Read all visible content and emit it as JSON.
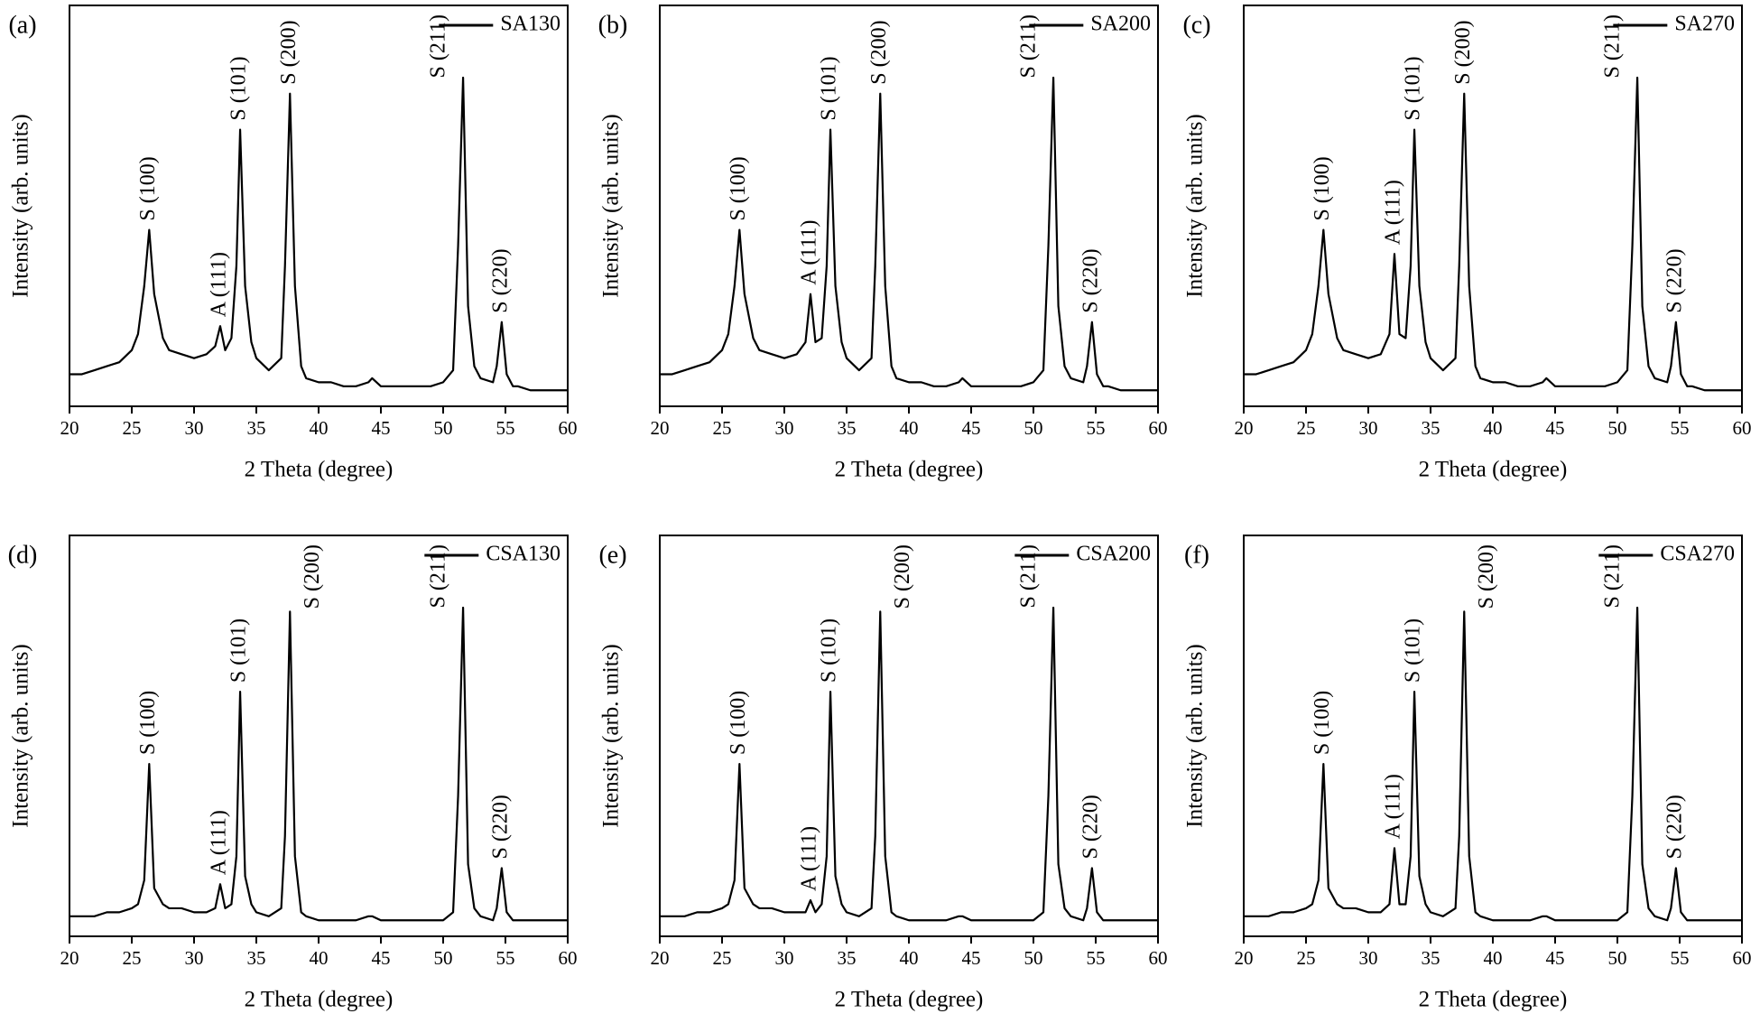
{
  "chart_data": [
    {
      "type": "line",
      "panel_label": "(a)",
      "xlabel": "2 Theta (degree)",
      "ylabel": "Intensity (arb. units)",
      "xlim": [
        20,
        60
      ],
      "xticks": [
        20,
        25,
        30,
        35,
        40,
        45,
        50,
        55,
        60
      ],
      "ylim": [
        0,
        100
      ],
      "legend": "upper right",
      "x": [
        20,
        21,
        22,
        23,
        24,
        25,
        25.5,
        26,
        26.4,
        26.8,
        27.5,
        28,
        29,
        30,
        31,
        31.7,
        32.1,
        32.5,
        33,
        33.4,
        33.7,
        34.1,
        34.6,
        35,
        36,
        37,
        37.3,
        37.7,
        38.1,
        38.6,
        39,
        40,
        41,
        42,
        43,
        44,
        44.3,
        45,
        46,
        47,
        48,
        49,
        50,
        50.8,
        51.2,
        51.6,
        52,
        52.5,
        53,
        54,
        54.3,
        54.7,
        55.1,
        55.6,
        56,
        57,
        58,
        59,
        60
      ],
      "series": [
        {
          "name": "SA130",
          "color": "#000000",
          "values": [
            8,
            8,
            9,
            10,
            11,
            14,
            18,
            30,
            44,
            28,
            17,
            14,
            13,
            12,
            13,
            15,
            20,
            14,
            17,
            35,
            69,
            30,
            16,
            12,
            9,
            12,
            35,
            78,
            30,
            10,
            7,
            6,
            6,
            5,
            5,
            6,
            7,
            5,
            5,
            5,
            5,
            5,
            6,
            9,
            40,
            82,
            25,
            10,
            7,
            6,
            10,
            21,
            8,
            5,
            5,
            4,
            4,
            4,
            4
          ]
        }
      ],
      "annotations": [
        {
          "text": "S (100)",
          "x": 26.4
        },
        {
          "text": "A (111)",
          "x": 32.1
        },
        {
          "text": "S (101)",
          "x": 33.7
        },
        {
          "text": "S (200)",
          "x": 37.7
        },
        {
          "text": "S (211)",
          "x": 51.6
        },
        {
          "text": "S (220)",
          "x": 54.7
        }
      ]
    },
    {
      "type": "line",
      "panel_label": "(b)",
      "xlabel": "2 Theta (degree)",
      "ylabel": "Intensity (arb. units)",
      "xlim": [
        20,
        60
      ],
      "xticks": [
        20,
        25,
        30,
        35,
        40,
        45,
        50,
        55,
        60
      ],
      "ylim": [
        0,
        100
      ],
      "legend": "upper right",
      "x": [
        20,
        21,
        22,
        23,
        24,
        25,
        25.5,
        26,
        26.4,
        26.8,
        27.5,
        28,
        29,
        30,
        31,
        31.7,
        32.1,
        32.5,
        33,
        33.4,
        33.7,
        34.1,
        34.6,
        35,
        36,
        37,
        37.3,
        37.7,
        38.1,
        38.6,
        39,
        40,
        41,
        42,
        43,
        44,
        44.3,
        45,
        46,
        47,
        48,
        49,
        50,
        50.8,
        51.2,
        51.6,
        52,
        52.5,
        53,
        54,
        54.3,
        54.7,
        55.1,
        55.6,
        56,
        57,
        58,
        59,
        60
      ],
      "series": [
        {
          "name": "SA200",
          "color": "#000000",
          "values": [
            8,
            8,
            9,
            10,
            11,
            14,
            18,
            30,
            44,
            28,
            17,
            14,
            13,
            12,
            13,
            16,
            28,
            16,
            17,
            35,
            69,
            30,
            16,
            12,
            9,
            12,
            35,
            78,
            30,
            10,
            7,
            6,
            6,
            5,
            5,
            6,
            7,
            5,
            5,
            5,
            5,
            5,
            6,
            9,
            40,
            82,
            25,
            10,
            7,
            6,
            10,
            21,
            8,
            5,
            5,
            4,
            4,
            4,
            4
          ]
        }
      ],
      "annotations": [
        {
          "text": "S (100)",
          "x": 26.4
        },
        {
          "text": "A (111)",
          "x": 32.1
        },
        {
          "text": "S (101)",
          "x": 33.7
        },
        {
          "text": "S (200)",
          "x": 37.7
        },
        {
          "text": "S (211)",
          "x": 51.6
        },
        {
          "text": "S (220)",
          "x": 54.7
        }
      ]
    },
    {
      "type": "line",
      "panel_label": "(c)",
      "xlabel": "2 Theta (degree)",
      "ylabel": "Intensity (arb. units)",
      "xlim": [
        20,
        60
      ],
      "xticks": [
        20,
        25,
        30,
        35,
        40,
        45,
        50,
        55,
        60
      ],
      "ylim": [
        0,
        100
      ],
      "legend": "upper right",
      "x": [
        20,
        21,
        22,
        23,
        24,
        25,
        25.5,
        26,
        26.4,
        26.8,
        27.5,
        28,
        29,
        30,
        31,
        31.7,
        32.1,
        32.5,
        33,
        33.4,
        33.7,
        34.1,
        34.6,
        35,
        36,
        37,
        37.3,
        37.7,
        38.1,
        38.6,
        39,
        40,
        41,
        42,
        43,
        44,
        44.3,
        45,
        46,
        47,
        48,
        49,
        50,
        50.8,
        51.2,
        51.6,
        52,
        52.5,
        53,
        54,
        54.3,
        54.7,
        55.1,
        55.6,
        56,
        57,
        58,
        59,
        60
      ],
      "series": [
        {
          "name": "SA270",
          "color": "#000000",
          "values": [
            8,
            8,
            9,
            10,
            11,
            14,
            18,
            30,
            44,
            28,
            17,
            14,
            13,
            12,
            13,
            18,
            38,
            18,
            17,
            35,
            69,
            30,
            16,
            12,
            9,
            12,
            35,
            78,
            30,
            10,
            7,
            6,
            6,
            5,
            5,
            6,
            7,
            5,
            5,
            5,
            5,
            5,
            6,
            9,
            40,
            82,
            25,
            10,
            7,
            6,
            10,
            21,
            8,
            5,
            5,
            4,
            4,
            4,
            4
          ]
        }
      ],
      "annotations": [
        {
          "text": "S (100)",
          "x": 26.4
        },
        {
          "text": "A (111)",
          "x": 32.1
        },
        {
          "text": "S (101)",
          "x": 33.7
        },
        {
          "text": "S (200)",
          "x": 37.7
        },
        {
          "text": "S (211)",
          "x": 51.6
        },
        {
          "text": "S (220)",
          "x": 54.7
        }
      ]
    },
    {
      "type": "line",
      "panel_label": "(d)",
      "xlabel": "2 Theta (degree)",
      "ylabel": "Intensity (arb. units)",
      "xlim": [
        20,
        60
      ],
      "xticks": [
        20,
        25,
        30,
        35,
        40,
        45,
        50,
        55,
        60
      ],
      "ylim": [
        0,
        100
      ],
      "legend": "upper right",
      "x": [
        20,
        21,
        22,
        23,
        24,
        25,
        25.5,
        26,
        26.4,
        26.8,
        27.5,
        28,
        29,
        30,
        31,
        31.7,
        32.1,
        32.5,
        33,
        33.4,
        33.7,
        34.1,
        34.6,
        35,
        36,
        37,
        37.3,
        37.7,
        38.1,
        38.6,
        39,
        40,
        41,
        42,
        43,
        44,
        44.3,
        45,
        46,
        47,
        48,
        49,
        50,
        50.8,
        51.2,
        51.6,
        52,
        52.5,
        53,
        54,
        54.3,
        54.7,
        55.1,
        55.6,
        56,
        57,
        58,
        59,
        60
      ],
      "series": [
        {
          "name": "CSA130",
          "color": "#000000",
          "values": [
            5,
            5,
            5,
            6,
            6,
            7,
            8,
            14,
            43,
            12,
            8,
            7,
            7,
            6,
            6,
            7,
            13,
            7,
            8,
            20,
            61,
            15,
            8,
            6,
            5,
            7,
            25,
            81,
            20,
            6,
            5,
            4,
            4,
            4,
            4,
            5,
            5,
            4,
            4,
            4,
            4,
            4,
            4,
            6,
            35,
            82,
            18,
            7,
            5,
            4,
            7,
            17,
            6,
            4,
            4,
            4,
            4,
            4,
            4
          ]
        }
      ],
      "annotations": [
        {
          "text": "S (100)",
          "x": 26.4
        },
        {
          "text": "A (111)",
          "x": 32.1
        },
        {
          "text": "S (101)",
          "x": 33.7
        },
        {
          "text": "S (200)",
          "x": 37.7
        },
        {
          "text": "S (211)",
          "x": 51.6
        },
        {
          "text": "S (220)",
          "x": 54.7
        }
      ]
    },
    {
      "type": "line",
      "panel_label": "(e)",
      "xlabel": "2 Theta (degree)",
      "ylabel": "Intensity (arb. units)",
      "xlim": [
        20,
        60
      ],
      "xticks": [
        20,
        25,
        30,
        35,
        40,
        45,
        50,
        55,
        60
      ],
      "ylim": [
        0,
        100
      ],
      "legend": "upper right",
      "x": [
        20,
        21,
        22,
        23,
        24,
        25,
        25.5,
        26,
        26.4,
        26.8,
        27.5,
        28,
        29,
        30,
        31,
        31.7,
        32.1,
        32.5,
        33,
        33.4,
        33.7,
        34.1,
        34.6,
        35,
        36,
        37,
        37.3,
        37.7,
        38.1,
        38.6,
        39,
        40,
        41,
        42,
        43,
        44,
        44.3,
        45,
        46,
        47,
        48,
        49,
        50,
        50.8,
        51.2,
        51.6,
        52,
        52.5,
        53,
        54,
        54.3,
        54.7,
        55.1,
        55.6,
        56,
        57,
        58,
        59,
        60
      ],
      "series": [
        {
          "name": "CSA200",
          "color": "#000000",
          "values": [
            5,
            5,
            5,
            6,
            6,
            7,
            8,
            14,
            43,
            12,
            8,
            7,
            7,
            6,
            6,
            6,
            9,
            6,
            8,
            20,
            61,
            15,
            8,
            6,
            5,
            7,
            25,
            81,
            20,
            6,
            5,
            4,
            4,
            4,
            4,
            5,
            5,
            4,
            4,
            4,
            4,
            4,
            4,
            6,
            35,
            82,
            18,
            7,
            5,
            4,
            7,
            17,
            6,
            4,
            4,
            4,
            4,
            4,
            4
          ]
        }
      ],
      "annotations": [
        {
          "text": "S (100)",
          "x": 26.4
        },
        {
          "text": "A (111)",
          "x": 32.1
        },
        {
          "text": "S (101)",
          "x": 33.7
        },
        {
          "text": "S (200)",
          "x": 37.7
        },
        {
          "text": "S (211)",
          "x": 51.6
        },
        {
          "text": "S (220)",
          "x": 54.7
        }
      ]
    },
    {
      "type": "line",
      "panel_label": "(f)",
      "xlabel": "2 Theta (degree)",
      "ylabel": "Intensity (arb. units)",
      "xlim": [
        20,
        60
      ],
      "xticks": [
        20,
        25,
        30,
        35,
        40,
        45,
        50,
        55,
        60
      ],
      "ylim": [
        0,
        100
      ],
      "legend": "upper right",
      "x": [
        20,
        21,
        22,
        23,
        24,
        25,
        25.5,
        26,
        26.4,
        26.8,
        27.5,
        28,
        29,
        30,
        31,
        31.7,
        32.1,
        32.5,
        33,
        33.4,
        33.7,
        34.1,
        34.6,
        35,
        36,
        37,
        37.3,
        37.7,
        38.1,
        38.6,
        39,
        40,
        41,
        42,
        43,
        44,
        44.3,
        45,
        46,
        47,
        48,
        49,
        50,
        50.8,
        51.2,
        51.6,
        52,
        52.5,
        53,
        54,
        54.3,
        54.7,
        55.1,
        55.6,
        56,
        57,
        58,
        59,
        60
      ],
      "series": [
        {
          "name": "CSA270",
          "color": "#000000",
          "values": [
            5,
            5,
            5,
            6,
            6,
            7,
            8,
            14,
            43,
            12,
            8,
            7,
            7,
            6,
            6,
            8,
            22,
            8,
            8,
            20,
            61,
            15,
            8,
            6,
            5,
            7,
            25,
            81,
            20,
            6,
            5,
            4,
            4,
            4,
            4,
            5,
            5,
            4,
            4,
            4,
            4,
            4,
            4,
            6,
            35,
            82,
            18,
            7,
            5,
            4,
            7,
            17,
            6,
            4,
            4,
            4,
            4,
            4,
            4
          ]
        }
      ],
      "annotations": [
        {
          "text": "S (100)",
          "x": 26.4
        },
        {
          "text": "A (111)",
          "x": 32.1
        },
        {
          "text": "S (101)",
          "x": 33.7
        },
        {
          "text": "S (200)",
          "x": 37.7
        },
        {
          "text": "S (211)",
          "x": 51.6
        },
        {
          "text": "S (220)",
          "x": 54.7
        }
      ]
    }
  ]
}
